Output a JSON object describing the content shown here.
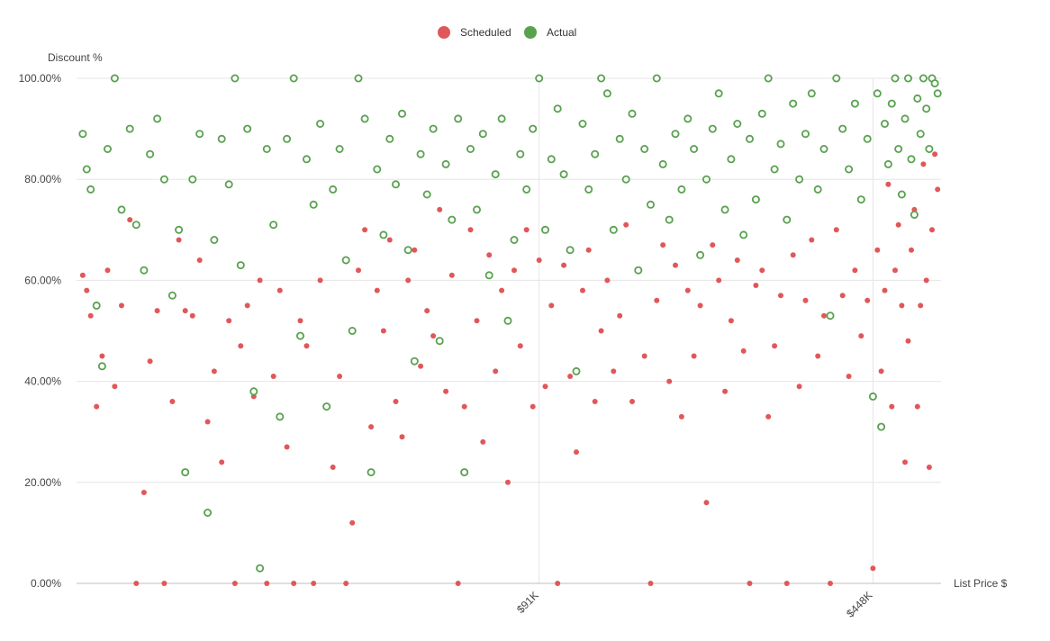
{
  "chart_data": {
    "type": "scatter",
    "xlabel": "List Price $",
    "ylabel": "Discount %",
    "x_scale": "log",
    "xlim": [
      10000,
      620000
    ],
    "ylim": [
      0,
      100
    ],
    "y_ticks": [
      {
        "value": 0,
        "label": "0.00%"
      },
      {
        "value": 20,
        "label": "20.00%"
      },
      {
        "value": 40,
        "label": "40.00%"
      },
      {
        "value": 60,
        "label": "60.00%"
      },
      {
        "value": 80,
        "label": "80.00%"
      },
      {
        "value": 100,
        "label": "100.00%"
      }
    ],
    "x_ticks": [
      {
        "value": 91000,
        "label": "$91K"
      },
      {
        "value": 448000,
        "label": "$448K"
      }
    ],
    "grid": true,
    "legend_position": "top-center",
    "series": [
      {
        "name": "Scheduled",
        "color": "#e15759",
        "marker": "filled-circle",
        "points": [
          [
            10300,
            61
          ],
          [
            10500,
            58
          ],
          [
            10700,
            53
          ],
          [
            11000,
            35
          ],
          [
            11300,
            45
          ],
          [
            11600,
            62
          ],
          [
            12000,
            39
          ],
          [
            12400,
            55
          ],
          [
            12900,
            72
          ],
          [
            13300,
            0
          ],
          [
            13800,
            18
          ],
          [
            14200,
            44
          ],
          [
            14700,
            54
          ],
          [
            15200,
            0
          ],
          [
            15800,
            36
          ],
          [
            16300,
            68
          ],
          [
            16800,
            54
          ],
          [
            17400,
            53
          ],
          [
            18000,
            64
          ],
          [
            18700,
            32
          ],
          [
            19300,
            42
          ],
          [
            20000,
            24
          ],
          [
            20700,
            52
          ],
          [
            21300,
            0
          ],
          [
            21900,
            47
          ],
          [
            22600,
            55
          ],
          [
            23300,
            37
          ],
          [
            24000,
            60
          ],
          [
            24800,
            0
          ],
          [
            25600,
            41
          ],
          [
            26400,
            58
          ],
          [
            27300,
            27
          ],
          [
            28200,
            0
          ],
          [
            29100,
            52
          ],
          [
            30000,
            47
          ],
          [
            31000,
            0
          ],
          [
            32000,
            60
          ],
          [
            33000,
            35
          ],
          [
            34000,
            23
          ],
          [
            35100,
            41
          ],
          [
            36200,
            0
          ],
          [
            37300,
            12
          ],
          [
            38400,
            62
          ],
          [
            39600,
            70
          ],
          [
            40800,
            31
          ],
          [
            42000,
            58
          ],
          [
            43300,
            50
          ],
          [
            44600,
            68
          ],
          [
            45900,
            36
          ],
          [
            47300,
            29
          ],
          [
            48700,
            60
          ],
          [
            50200,
            66
          ],
          [
            51700,
            43
          ],
          [
            53300,
            54
          ],
          [
            54900,
            49
          ],
          [
            56600,
            74
          ],
          [
            58300,
            38
          ],
          [
            60000,
            61
          ],
          [
            61800,
            0
          ],
          [
            63700,
            35
          ],
          [
            65600,
            70
          ],
          [
            67600,
            52
          ],
          [
            69600,
            28
          ],
          [
            71700,
            65
          ],
          [
            73900,
            42
          ],
          [
            76100,
            58
          ],
          [
            78400,
            20
          ],
          [
            80800,
            62
          ],
          [
            83200,
            47
          ],
          [
            85700,
            70
          ],
          [
            88300,
            35
          ],
          [
            91000,
            64
          ],
          [
            93700,
            39
          ],
          [
            96500,
            55
          ],
          [
            99400,
            0
          ],
          [
            102400,
            63
          ],
          [
            105500,
            41
          ],
          [
            108700,
            26
          ],
          [
            112000,
            58
          ],
          [
            115300,
            66
          ],
          [
            118800,
            36
          ],
          [
            122400,
            50
          ],
          [
            126000,
            60
          ],
          [
            129800,
            42
          ],
          [
            133700,
            53
          ],
          [
            137800,
            71
          ],
          [
            141900,
            36
          ],
          [
            146100,
            62
          ],
          [
            150500,
            45
          ],
          [
            155000,
            0
          ],
          [
            159600,
            56
          ],
          [
            164400,
            67
          ],
          [
            169400,
            40
          ],
          [
            174400,
            63
          ],
          [
            179700,
            33
          ],
          [
            185100,
            58
          ],
          [
            190600,
            45
          ],
          [
            196400,
            55
          ],
          [
            202300,
            16
          ],
          [
            208300,
            67
          ],
          [
            214600,
            60
          ],
          [
            221000,
            38
          ],
          [
            227600,
            52
          ],
          [
            234500,
            64
          ],
          [
            241500,
            46
          ],
          [
            248700,
            0
          ],
          [
            256200,
            59
          ],
          [
            263900,
            62
          ],
          [
            271800,
            33
          ],
          [
            280000,
            47
          ],
          [
            288400,
            57
          ],
          [
            297000,
            0
          ],
          [
            305900,
            65
          ],
          [
            315100,
            39
          ],
          [
            324600,
            56
          ],
          [
            334300,
            68
          ],
          [
            344300,
            45
          ],
          [
            354600,
            53
          ],
          [
            365300,
            0
          ],
          [
            376200,
            70
          ],
          [
            387500,
            57
          ],
          [
            399200,
            41
          ],
          [
            411100,
            62
          ],
          [
            423500,
            49
          ],
          [
            436200,
            56
          ],
          [
            448000,
            3
          ],
          [
            457500,
            66
          ],
          [
            466000,
            42
          ],
          [
            474000,
            58
          ],
          [
            482000,
            79
          ],
          [
            490000,
            35
          ],
          [
            498000,
            62
          ],
          [
            506000,
            71
          ],
          [
            514000,
            55
          ],
          [
            522000,
            24
          ],
          [
            530000,
            48
          ],
          [
            538000,
            66
          ],
          [
            546000,
            74
          ],
          [
            554000,
            35
          ],
          [
            562000,
            55
          ],
          [
            570000,
            83
          ],
          [
            578000,
            60
          ],
          [
            586000,
            23
          ],
          [
            594000,
            70
          ],
          [
            602000,
            85
          ],
          [
            610000,
            78
          ]
        ]
      },
      {
        "name": "Actual",
        "color": "#59a14f",
        "marker": "hollow-circle",
        "points": [
          [
            10300,
            89
          ],
          [
            10500,
            82
          ],
          [
            10700,
            78
          ],
          [
            11000,
            55
          ],
          [
            11300,
            43
          ],
          [
            11600,
            86
          ],
          [
            12000,
            100
          ],
          [
            12400,
            74
          ],
          [
            12900,
            90
          ],
          [
            13300,
            71
          ],
          [
            13800,
            62
          ],
          [
            14200,
            85
          ],
          [
            14700,
            92
          ],
          [
            15200,
            80
          ],
          [
            15800,
            57
          ],
          [
            16300,
            70
          ],
          [
            16800,
            22
          ],
          [
            17400,
            80
          ],
          [
            18000,
            89
          ],
          [
            18700,
            14
          ],
          [
            19300,
            68
          ],
          [
            20000,
            88
          ],
          [
            20700,
            79
          ],
          [
            21300,
            100
          ],
          [
            21900,
            63
          ],
          [
            22600,
            90
          ],
          [
            23300,
            38
          ],
          [
            24000,
            3
          ],
          [
            24800,
            86
          ],
          [
            25600,
            71
          ],
          [
            26400,
            33
          ],
          [
            27300,
            88
          ],
          [
            28200,
            100
          ],
          [
            29100,
            49
          ],
          [
            30000,
            84
          ],
          [
            31000,
            75
          ],
          [
            32000,
            91
          ],
          [
            33000,
            35
          ],
          [
            34000,
            78
          ],
          [
            35100,
            86
          ],
          [
            36200,
            64
          ],
          [
            37300,
            50
          ],
          [
            38400,
            100
          ],
          [
            39600,
            92
          ],
          [
            40800,
            22
          ],
          [
            42000,
            82
          ],
          [
            43300,
            69
          ],
          [
            44600,
            88
          ],
          [
            45900,
            79
          ],
          [
            47300,
            93
          ],
          [
            48700,
            66
          ],
          [
            50200,
            44
          ],
          [
            51700,
            85
          ],
          [
            53300,
            77
          ],
          [
            54900,
            90
          ],
          [
            56600,
            48
          ],
          [
            58300,
            83
          ],
          [
            60000,
            72
          ],
          [
            61800,
            92
          ],
          [
            63700,
            22
          ],
          [
            65600,
            86
          ],
          [
            67600,
            74
          ],
          [
            69600,
            89
          ],
          [
            71700,
            61
          ],
          [
            73900,
            81
          ],
          [
            76100,
            92
          ],
          [
            78400,
            52
          ],
          [
            80800,
            68
          ],
          [
            83200,
            85
          ],
          [
            85700,
            78
          ],
          [
            88300,
            90
          ],
          [
            91000,
            100
          ],
          [
            93700,
            70
          ],
          [
            96500,
            84
          ],
          [
            99400,
            94
          ],
          [
            102400,
            81
          ],
          [
            105500,
            66
          ],
          [
            108700,
            42
          ],
          [
            112000,
            91
          ],
          [
            115300,
            78
          ],
          [
            118800,
            85
          ],
          [
            122400,
            100
          ],
          [
            126000,
            97
          ],
          [
            129800,
            70
          ],
          [
            133700,
            88
          ],
          [
            137800,
            80
          ],
          [
            141900,
            93
          ],
          [
            146100,
            62
          ],
          [
            150500,
            86
          ],
          [
            155000,
            75
          ],
          [
            159600,
            100
          ],
          [
            164400,
            83
          ],
          [
            169400,
            72
          ],
          [
            174400,
            89
          ],
          [
            179700,
            78
          ],
          [
            185100,
            92
          ],
          [
            190600,
            86
          ],
          [
            196400,
            65
          ],
          [
            202300,
            80
          ],
          [
            208300,
            90
          ],
          [
            214600,
            97
          ],
          [
            221000,
            74
          ],
          [
            227600,
            84
          ],
          [
            234500,
            91
          ],
          [
            241500,
            69
          ],
          [
            248700,
            88
          ],
          [
            256200,
            76
          ],
          [
            263900,
            93
          ],
          [
            271800,
            100
          ],
          [
            280000,
            82
          ],
          [
            288400,
            87
          ],
          [
            297000,
            72
          ],
          [
            305900,
            95
          ],
          [
            315100,
            80
          ],
          [
            324600,
            89
          ],
          [
            334300,
            97
          ],
          [
            344300,
            78
          ],
          [
            354600,
            86
          ],
          [
            365300,
            53
          ],
          [
            376200,
            100
          ],
          [
            387500,
            90
          ],
          [
            399200,
            82
          ],
          [
            411100,
            95
          ],
          [
            423500,
            76
          ],
          [
            436200,
            88
          ],
          [
            448000,
            37
          ],
          [
            457500,
            97
          ],
          [
            466000,
            31
          ],
          [
            474000,
            91
          ],
          [
            482000,
            83
          ],
          [
            490000,
            95
          ],
          [
            498000,
            100
          ],
          [
            506000,
            86
          ],
          [
            514000,
            77
          ],
          [
            522000,
            92
          ],
          [
            530000,
            100
          ],
          [
            538000,
            84
          ],
          [
            546000,
            73
          ],
          [
            554000,
            96
          ],
          [
            562000,
            89
          ],
          [
            570000,
            100
          ],
          [
            578000,
            94
          ],
          [
            586000,
            86
          ],
          [
            594000,
            100
          ],
          [
            602000,
            99
          ],
          [
            610000,
            97
          ]
        ]
      }
    ]
  }
}
